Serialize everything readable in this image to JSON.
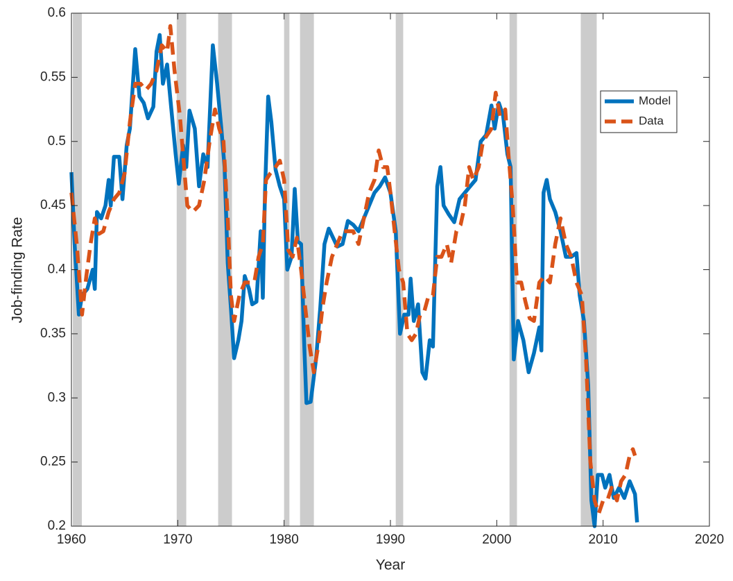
{
  "chart_data": {
    "type": "line",
    "xlabel": "Year",
    "ylabel": "Job-finding Rate",
    "xlim": [
      1960,
      2020
    ],
    "xticks": [
      1960,
      1970,
      1980,
      1990,
      2000,
      2010,
      2020
    ],
    "ylim": [
      0.2,
      0.6
    ],
    "yticks": [
      0.2,
      0.25,
      0.3,
      0.35,
      0.4,
      0.45,
      0.5,
      0.55,
      0.6
    ],
    "legend": "northeast",
    "recession_color": "#cccccc",
    "recessions": [
      [
        1960.13,
        1960.98
      ],
      [
        1969.9,
        1970.8
      ],
      [
        1973.8,
        1975.1
      ],
      [
        1980.0,
        1980.5
      ],
      [
        1981.5,
        1982.8
      ],
      [
        1990.5,
        1991.2
      ],
      [
        2001.2,
        2001.9
      ],
      [
        2007.9,
        2009.4
      ]
    ],
    "series": [
      {
        "name": "Model",
        "color": "#0072bd",
        "style": "solid",
        "x": [
          1960.0,
          1960.3,
          1960.7,
          1961.0,
          1961.5,
          1962.0,
          1962.2,
          1962.4,
          1962.8,
          1963.2,
          1963.5,
          1963.7,
          1964.0,
          1964.5,
          1964.8,
          1965.2,
          1965.5,
          1966.0,
          1966.4,
          1966.8,
          1967.2,
          1967.7,
          1968.0,
          1968.3,
          1968.6,
          1969.0,
          1969.4,
          1969.8,
          1970.1,
          1970.5,
          1970.8,
          1971.1,
          1971.6,
          1972.0,
          1972.4,
          1972.8,
          1973.3,
          1973.7,
          1974.1,
          1974.4,
          1974.7,
          1975.0,
          1975.3,
          1975.7,
          1976.0,
          1976.3,
          1976.7,
          1977.0,
          1977.4,
          1977.8,
          1978.0,
          1978.2,
          1978.5,
          1978.8,
          1979.2,
          1979.6,
          1980.0,
          1980.3,
          1980.7,
          1981.0,
          1981.3,
          1981.6,
          1981.9,
          1982.1,
          1982.5,
          1983.0,
          1983.4,
          1983.8,
          1984.2,
          1984.6,
          1985.0,
          1985.5,
          1986.0,
          1986.5,
          1987.0,
          1987.5,
          1988.0,
          1988.5,
          1989.0,
          1989.5,
          1990.0,
          1990.5,
          1990.9,
          1991.3,
          1991.7,
          1991.9,
          1992.2,
          1992.6,
          1993.0,
          1993.3,
          1993.7,
          1994.0,
          1994.4,
          1994.7,
          1995.0,
          1995.5,
          1996.0,
          1996.5,
          1997.0,
          1997.5,
          1998.0,
          1998.5,
          1999.0,
          1999.5,
          1999.8,
          2000.2,
          2000.6,
          2001.0,
          2001.3,
          2001.6,
          2002.0,
          2002.5,
          2003.0,
          2003.5,
          2004.0,
          2004.2,
          2004.4,
          2004.7,
          2005.0,
          2005.5,
          2006.0,
          2006.5,
          2007.0,
          2007.5,
          2007.8,
          2008.2,
          2008.6,
          2008.9,
          2009.2,
          2009.5,
          2009.9,
          2010.2,
          2010.6,
          2011.0,
          2011.5,
          2012.0,
          2012.5,
          2013.0,
          2013.2
        ],
        "values": [
          0.476,
          0.42,
          0.365,
          0.38,
          0.385,
          0.4,
          0.385,
          0.445,
          0.44,
          0.45,
          0.47,
          0.45,
          0.488,
          0.488,
          0.455,
          0.497,
          0.51,
          0.572,
          0.535,
          0.53,
          0.518,
          0.527,
          0.57,
          0.583,
          0.545,
          0.56,
          0.525,
          0.49,
          0.467,
          0.497,
          0.48,
          0.524,
          0.51,
          0.465,
          0.49,
          0.48,
          0.575,
          0.545,
          0.51,
          0.48,
          0.405,
          0.37,
          0.331,
          0.345,
          0.36,
          0.395,
          0.385,
          0.373,
          0.375,
          0.43,
          0.378,
          0.46,
          0.535,
          0.515,
          0.478,
          0.465,
          0.455,
          0.4,
          0.41,
          0.463,
          0.422,
          0.42,
          0.34,
          0.296,
          0.297,
          0.33,
          0.37,
          0.42,
          0.432,
          0.425,
          0.418,
          0.42,
          0.438,
          0.435,
          0.43,
          0.44,
          0.45,
          0.46,
          0.465,
          0.472,
          0.46,
          0.43,
          0.35,
          0.365,
          0.365,
          0.393,
          0.36,
          0.373,
          0.32,
          0.315,
          0.345,
          0.34,
          0.465,
          0.48,
          0.45,
          0.443,
          0.437,
          0.455,
          0.46,
          0.465,
          0.47,
          0.5,
          0.505,
          0.528,
          0.51,
          0.53,
          0.52,
          0.49,
          0.48,
          0.33,
          0.36,
          0.345,
          0.32,
          0.335,
          0.355,
          0.337,
          0.46,
          0.47,
          0.455,
          0.445,
          0.43,
          0.41,
          0.41,
          0.413,
          0.38,
          0.36,
          0.31,
          0.22,
          0.2,
          0.24,
          0.24,
          0.23,
          0.24,
          0.222,
          0.23,
          0.222,
          0.235,
          0.225,
          0.203
        ]
      },
      {
        "name": "Data",
        "color": "#d95319",
        "style": "dashed",
        "x": [
          1960.0,
          1960.5,
          1961.0,
          1961.4,
          1961.8,
          1962.2,
          1962.6,
          1963.0,
          1963.5,
          1964.0,
          1964.5,
          1965.0,
          1965.5,
          1966.0,
          1966.5,
          1967.0,
          1967.5,
          1968.0,
          1968.5,
          1969.0,
          1969.3,
          1969.7,
          1970.2,
          1970.6,
          1970.9,
          1971.4,
          1972.0,
          1972.5,
          1973.0,
          1973.5,
          1973.9,
          1974.3,
          1974.7,
          1975.0,
          1975.3,
          1975.8,
          1976.3,
          1976.8,
          1977.2,
          1977.6,
          1978.0,
          1978.3,
          1978.7,
          1979.2,
          1979.6,
          1980.0,
          1980.4,
          1980.8,
          1981.2,
          1981.6,
          1982.0,
          1982.4,
          1982.8,
          1983.2,
          1983.6,
          1984.0,
          1984.5,
          1985.0,
          1985.5,
          1986.0,
          1986.5,
          1987.0,
          1987.5,
          1988.0,
          1988.5,
          1988.9,
          1989.3,
          1989.7,
          1990.0,
          1990.4,
          1990.8,
          1991.2,
          1991.6,
          1992.0,
          1992.4,
          1992.8,
          1993.2,
          1993.6,
          1994.0,
          1994.4,
          1994.8,
          1995.3,
          1995.7,
          1996.2,
          1996.6,
          1997.0,
          1997.4,
          1997.8,
          1998.3,
          1998.7,
          1999.1,
          1999.5,
          1999.9,
          2000.3,
          2000.8,
          2001.1,
          2001.5,
          2001.9,
          2002.3,
          2002.7,
          2003.1,
          2003.5,
          2004.0,
          2004.5,
          2005.0,
          2005.5,
          2006.0,
          2006.5,
          2007.0,
          2007.5,
          2008.0,
          2008.4,
          2008.8,
          2009.2,
          2009.6,
          2010.0,
          2010.4,
          2010.8,
          2011.3,
          2011.7,
          2012.1,
          2012.5,
          2012.8,
          2013.0
        ],
        "values": [
          0.46,
          0.42,
          0.365,
          0.395,
          0.42,
          0.44,
          0.428,
          0.43,
          0.445,
          0.455,
          0.46,
          0.475,
          0.515,
          0.545,
          0.545,
          0.54,
          0.545,
          0.555,
          0.575,
          0.57,
          0.59,
          0.555,
          0.52,
          0.48,
          0.45,
          0.445,
          0.45,
          0.47,
          0.5,
          0.525,
          0.51,
          0.5,
          0.44,
          0.38,
          0.36,
          0.38,
          0.39,
          0.39,
          0.39,
          0.41,
          0.42,
          0.47,
          0.475,
          0.48,
          0.485,
          0.47,
          0.415,
          0.41,
          0.425,
          0.4,
          0.37,
          0.34,
          0.32,
          0.34,
          0.37,
          0.39,
          0.41,
          0.42,
          0.43,
          0.43,
          0.43,
          0.42,
          0.44,
          0.46,
          0.47,
          0.493,
          0.48,
          0.48,
          0.46,
          0.43,
          0.4,
          0.39,
          0.35,
          0.345,
          0.35,
          0.365,
          0.368,
          0.38,
          0.38,
          0.41,
          0.41,
          0.42,
          0.405,
          0.43,
          0.435,
          0.45,
          0.48,
          0.47,
          0.48,
          0.5,
          0.505,
          0.51,
          0.538,
          0.52,
          0.525,
          0.49,
          0.45,
          0.39,
          0.39,
          0.375,
          0.362,
          0.36,
          0.39,
          0.395,
          0.39,
          0.42,
          0.44,
          0.42,
          0.41,
          0.39,
          0.38,
          0.33,
          0.25,
          0.22,
          0.21,
          0.22,
          0.22,
          0.23,
          0.22,
          0.235,
          0.24,
          0.255,
          0.26,
          0.255
        ]
      }
    ]
  }
}
